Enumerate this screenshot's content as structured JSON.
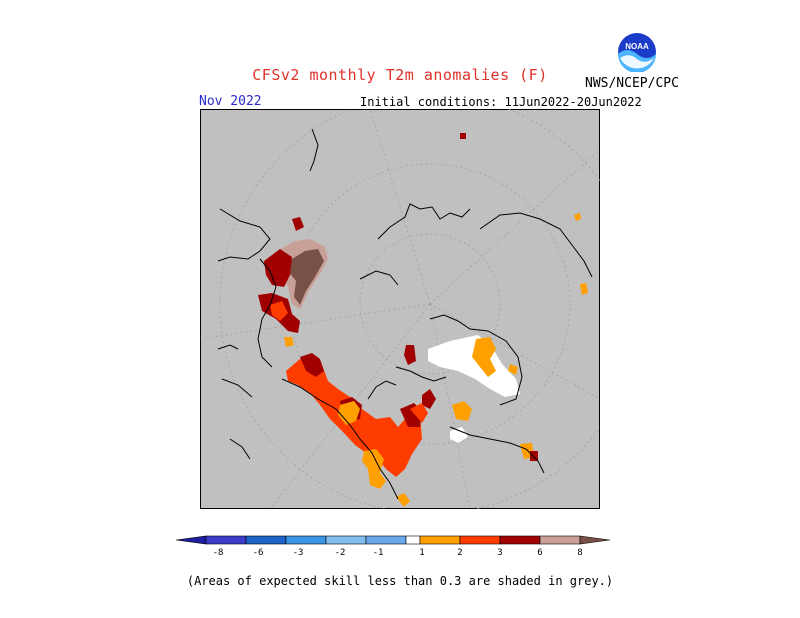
{
  "header": {
    "title": "CFSv2 monthly T2m anomalies (F)",
    "org": "NWS/NCEP/CPC",
    "logo_text": "NOAA",
    "month": "Nov 2022",
    "initial_conditions": "Initial conditions: 11Jun2022-20Jun2022"
  },
  "colorbar": {
    "labels": [
      "-8",
      "-6",
      "-3",
      "-2",
      "-1",
      "1",
      "2",
      "3",
      "6",
      "8"
    ],
    "colors": [
      "#1e1ea0",
      "#3c3cc8",
      "#1e64c8",
      "#3c96e6",
      "#82bef0",
      "#ffffff",
      "#ffa000",
      "#ff3c00",
      "#a00000",
      "#c8a098",
      "#785046"
    ]
  },
  "footnote": "(Areas of expected skill less than 0.3 are shaded in grey.)"
}
